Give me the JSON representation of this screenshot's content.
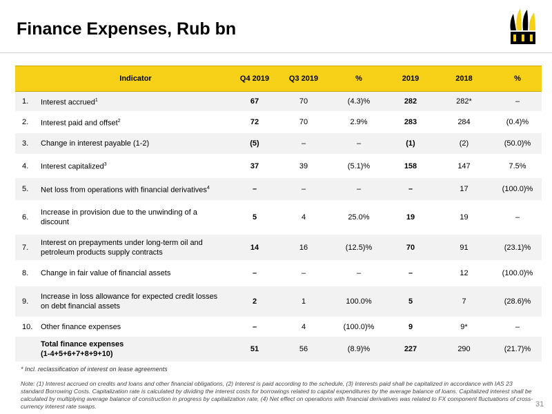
{
  "header": {
    "title": "Finance Expenses, Rub bn"
  },
  "table": {
    "columns": [
      "Indicator",
      "Q4 2019",
      "Q3 2019",
      "%",
      "2019",
      "2018",
      "%"
    ],
    "rows": [
      {
        "no": "1.",
        "indicator": "Interest accrued",
        "sup": "1",
        "cells": [
          "67",
          "70",
          "(4.3)%",
          "282",
          "282*",
          "–"
        ]
      },
      {
        "no": "2.",
        "indicator": "Interest paid and offset",
        "sup": "2",
        "cells": [
          "72",
          "70",
          "2.9%",
          "283",
          "284",
          "(0.4)%"
        ]
      },
      {
        "no": "3.",
        "indicator": "Change in interest payable (1-2)",
        "cells": [
          "(5)",
          "–",
          "–",
          "(1)",
          "(2)",
          "(50.0)%"
        ]
      },
      {
        "no": "4.",
        "indicator": "Interest capitalized",
        "sup": "3",
        "cells": [
          "37",
          "39",
          "(5.1)%",
          "158",
          "147",
          "7.5%"
        ]
      },
      {
        "no": "5.",
        "indicator": "Net loss from operations with financial derivatives",
        "sup": "4",
        "cells": [
          "–",
          "–",
          "–",
          "–",
          "17",
          "(100.0)%"
        ]
      },
      {
        "no": "6.",
        "indicator": "Increase in provision due to the unwinding of a\ndiscount",
        "cells": [
          "5",
          "4",
          "25.0%",
          "19",
          "19",
          "–"
        ]
      },
      {
        "no": "7.",
        "indicator": "Interest on prepayments under long-term oil and\npetroleum products supply contracts",
        "cells": [
          "14",
          "16",
          "(12.5)%",
          "70",
          "91",
          "(23.1)%"
        ]
      },
      {
        "no": "8.",
        "indicator": "Change in fair value of financial assets",
        "cells": [
          "–",
          "–",
          "–",
          "–",
          "12",
          "(100.0)%"
        ]
      },
      {
        "no": "9.",
        "indicator": "Increase in loss allowance for expected credit losses\non debt financial assets",
        "cells": [
          "2",
          "1",
          "100.0%",
          "5",
          "7",
          "(28.6)%"
        ]
      },
      {
        "no": "10.",
        "indicator": "Other finance expenses",
        "cells": [
          "–",
          "4",
          "(100.0)%",
          "9",
          "9*",
          "–"
        ]
      },
      {
        "indicator": "Total finance expenses\n(1-4+5+6+7+8+9+10)",
        "cells": [
          "51",
          "56",
          "(8.9)%",
          "227",
          "290",
          "(21.7)%"
        ]
      }
    ]
  },
  "footnote": "* Incl. reclassification of interest on lease agreements",
  "note": "Note: (1) Interest accrued on credits and loans and other financial obligations, (2) Interest is paid according to the schedule, (3) Interests paid shall be capitalized in accordance with IAS 23 standard Borrowing Costs. Capitalization rate is calculated by dividing the interest costs for borrowings related to capital expenditures by the average balance of loans. Capitalized interest shall be calculated by multiplying average balance of construction in progress by capitalization rate, (4) Net effect on operations with financial derivatives was related to FX component fluctuations of cross-currency interest rate swaps.",
  "page_number": "31"
}
